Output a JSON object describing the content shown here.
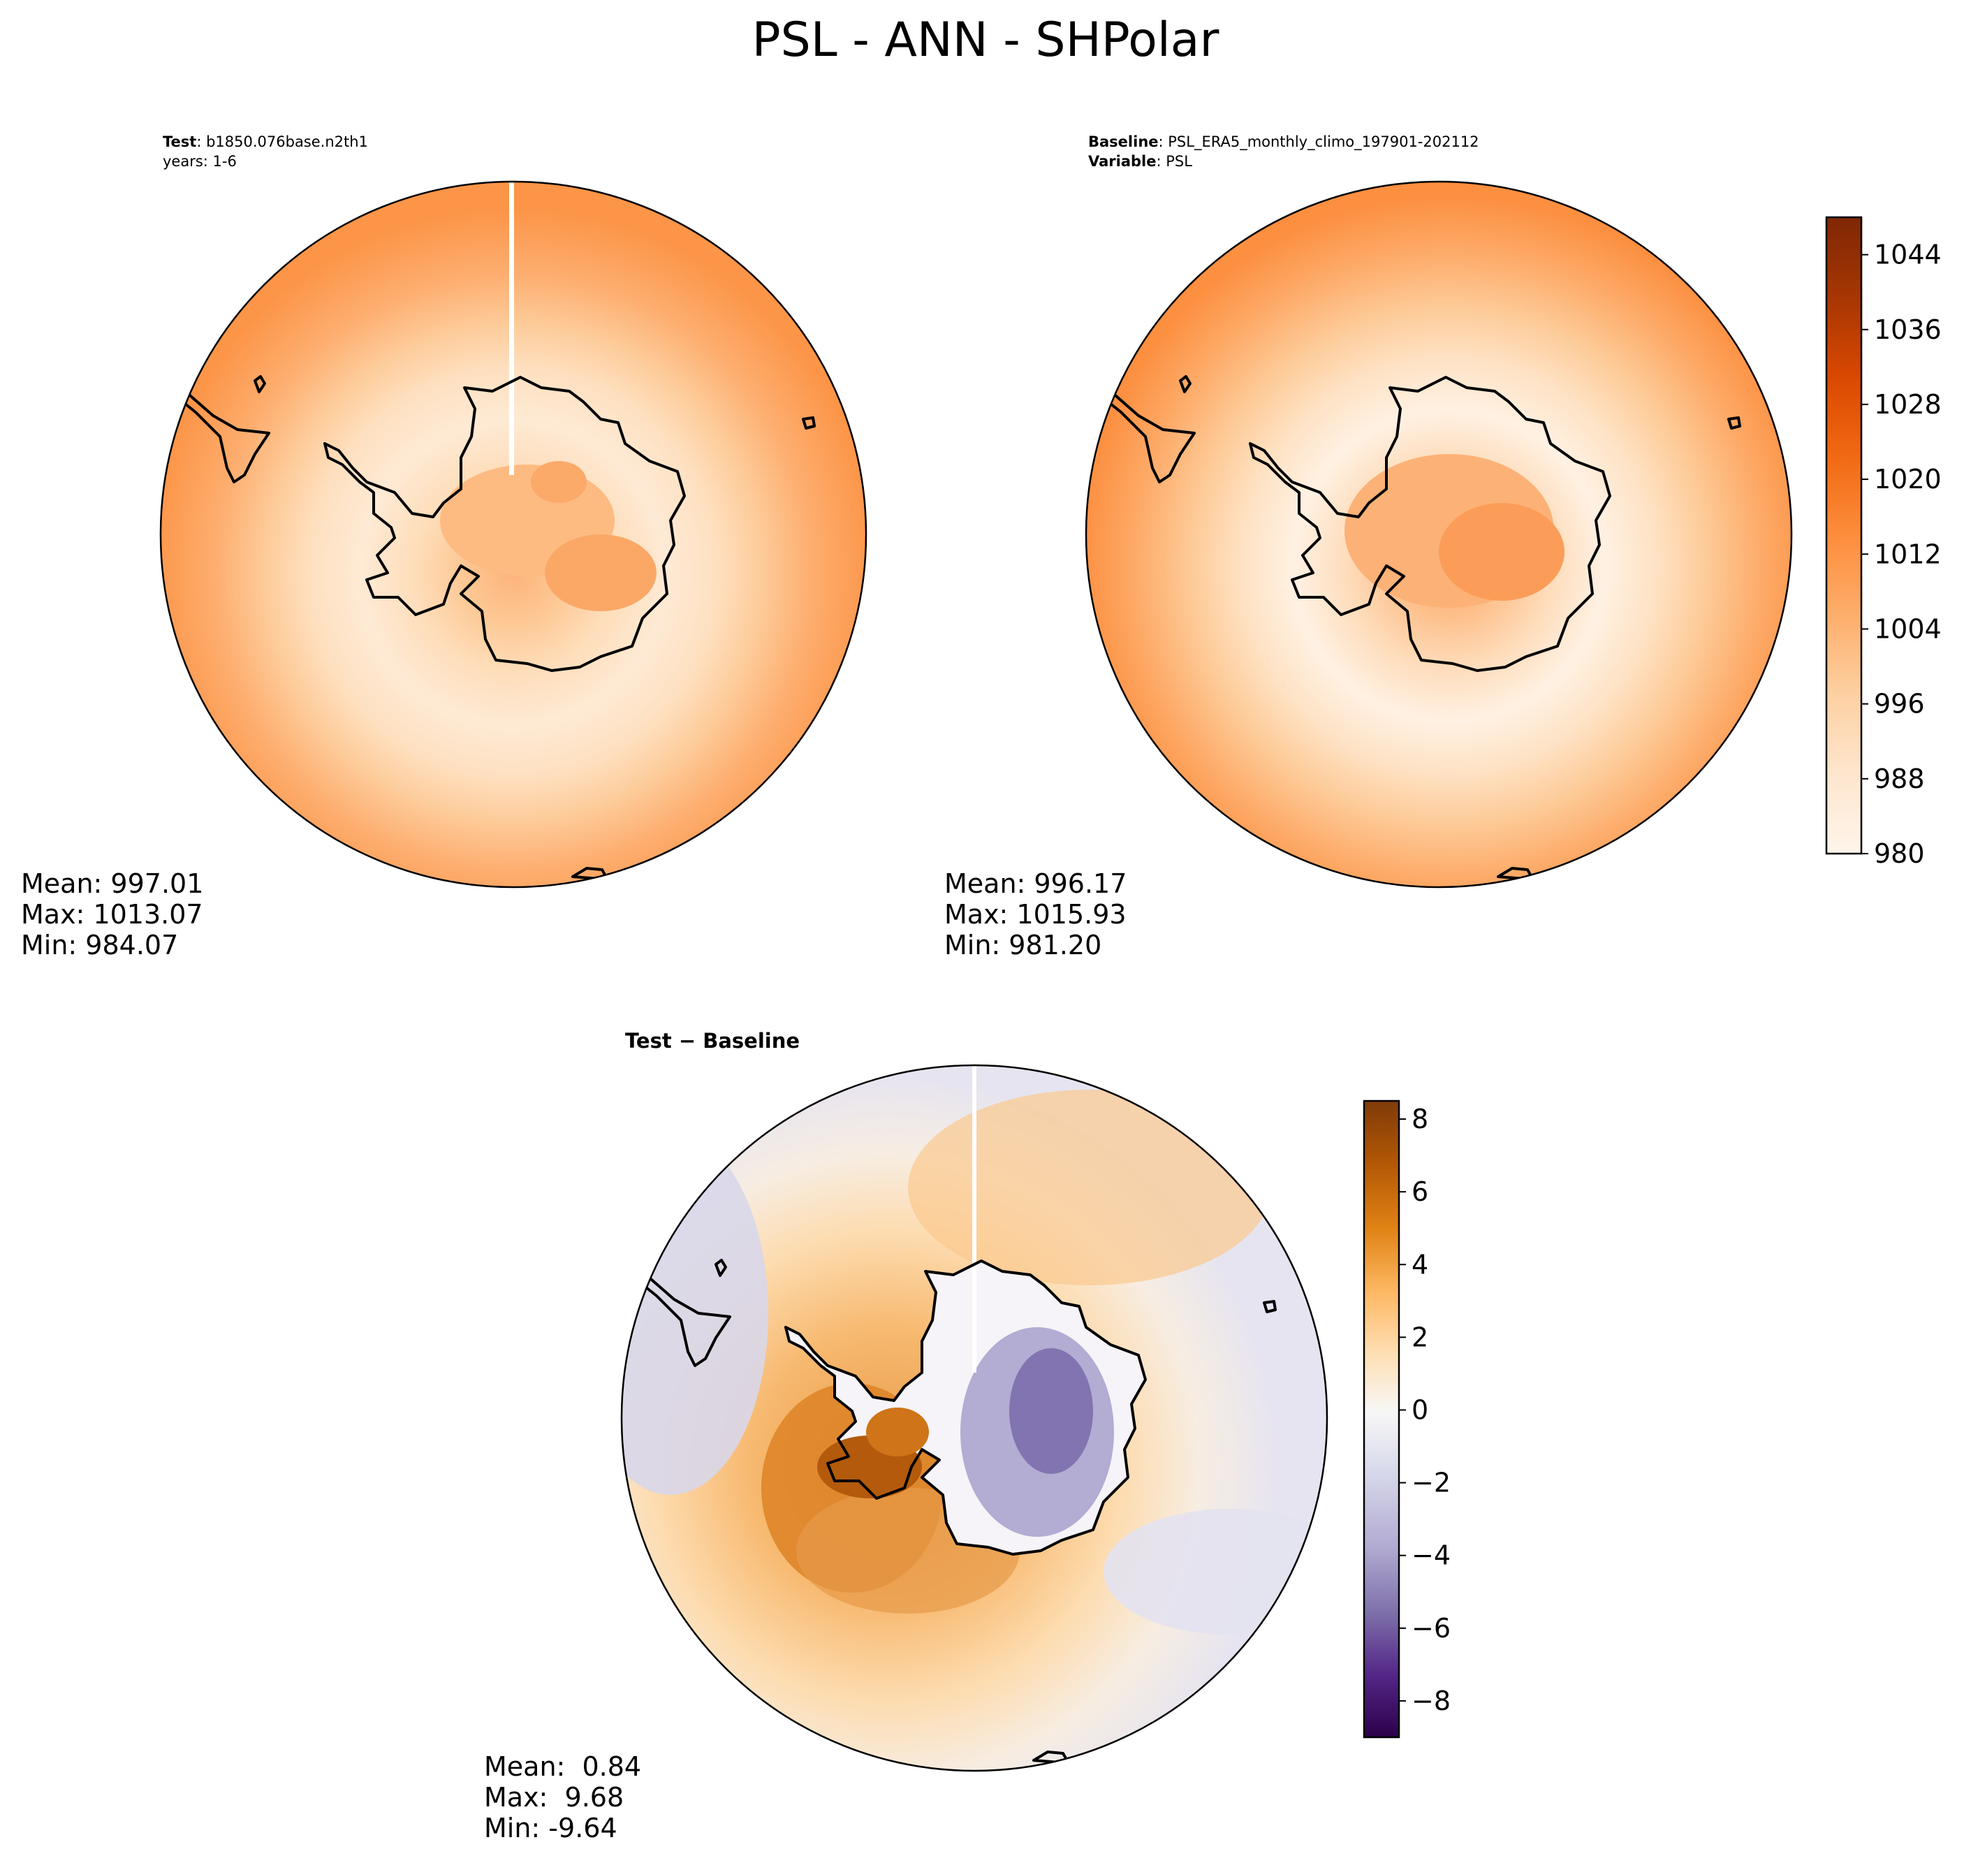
{
  "figure": {
    "title": "PSL - ANN - SHPolar"
  },
  "test_panel": {
    "label_bold": "Test",
    "label_value": ": b1850.076base.n2th1",
    "subline": "years: 1-6",
    "stats": {
      "mean": "Mean: 997.01",
      "max": "Max: 1013.07",
      "min": "Min: 984.07"
    }
  },
  "baseline_panel": {
    "label_bold": "Baseline",
    "label_value": ": PSL_ERA5_monthly_climo_197901-202112",
    "var_bold": "Variable",
    "var_value": ": PSL",
    "stats": {
      "mean": "Mean: 996.17",
      "max": "Max: 1015.93",
      "min": "Min: 981.20"
    }
  },
  "diff_panel": {
    "title": "Test − Baseline",
    "stats": {
      "mean": "Mean:  0.84",
      "max": "Max:  9.68",
      "min": "Min: -9.64"
    }
  },
  "chart_data": [
    {
      "type": "heatmap",
      "panel": "test",
      "projection": "south polar stereographic",
      "mean": 997.01,
      "max": 1013.07,
      "min": 984.07,
      "colormap": "Oranges",
      "levels": [
        980,
        1048
      ],
      "colorbar_ticks": [
        "980",
        "988",
        "996",
        "1004",
        "1012",
        "1020",
        "1028",
        "1036",
        "1044"
      ]
    },
    {
      "type": "heatmap",
      "panel": "baseline",
      "projection": "south polar stereographic",
      "mean": 996.17,
      "max": 1015.93,
      "min": 981.2,
      "colormap": "Oranges",
      "levels": [
        980,
        1048
      ],
      "colorbar_ticks": [
        "980",
        "988",
        "996",
        "1004",
        "1012",
        "1020",
        "1028",
        "1036",
        "1044"
      ]
    },
    {
      "type": "heatmap",
      "panel": "difference",
      "projection": "south polar stereographic",
      "mean": 0.84,
      "max": 9.68,
      "min": -9.64,
      "colormap": "PuOr (diverging)",
      "levels": [
        -9,
        8.5
      ],
      "colorbar_ticks": [
        "−8",
        "−6",
        "−4",
        "−2",
        "0",
        "2",
        "4",
        "6",
        "8"
      ]
    }
  ],
  "colors": {
    "oranges": [
      "#fff5eb",
      "#fee6ce",
      "#fdd0a2",
      "#fdae6b",
      "#fd8d3c",
      "#f16913",
      "#d94801",
      "#a63603",
      "#7f2704"
    ],
    "puor": [
      "#2d004b",
      "#542788",
      "#8073ac",
      "#b2abd2",
      "#d8daeb",
      "#f7f7f7",
      "#fee0b6",
      "#fdb863",
      "#e08214",
      "#b35806",
      "#7f3b08"
    ]
  }
}
